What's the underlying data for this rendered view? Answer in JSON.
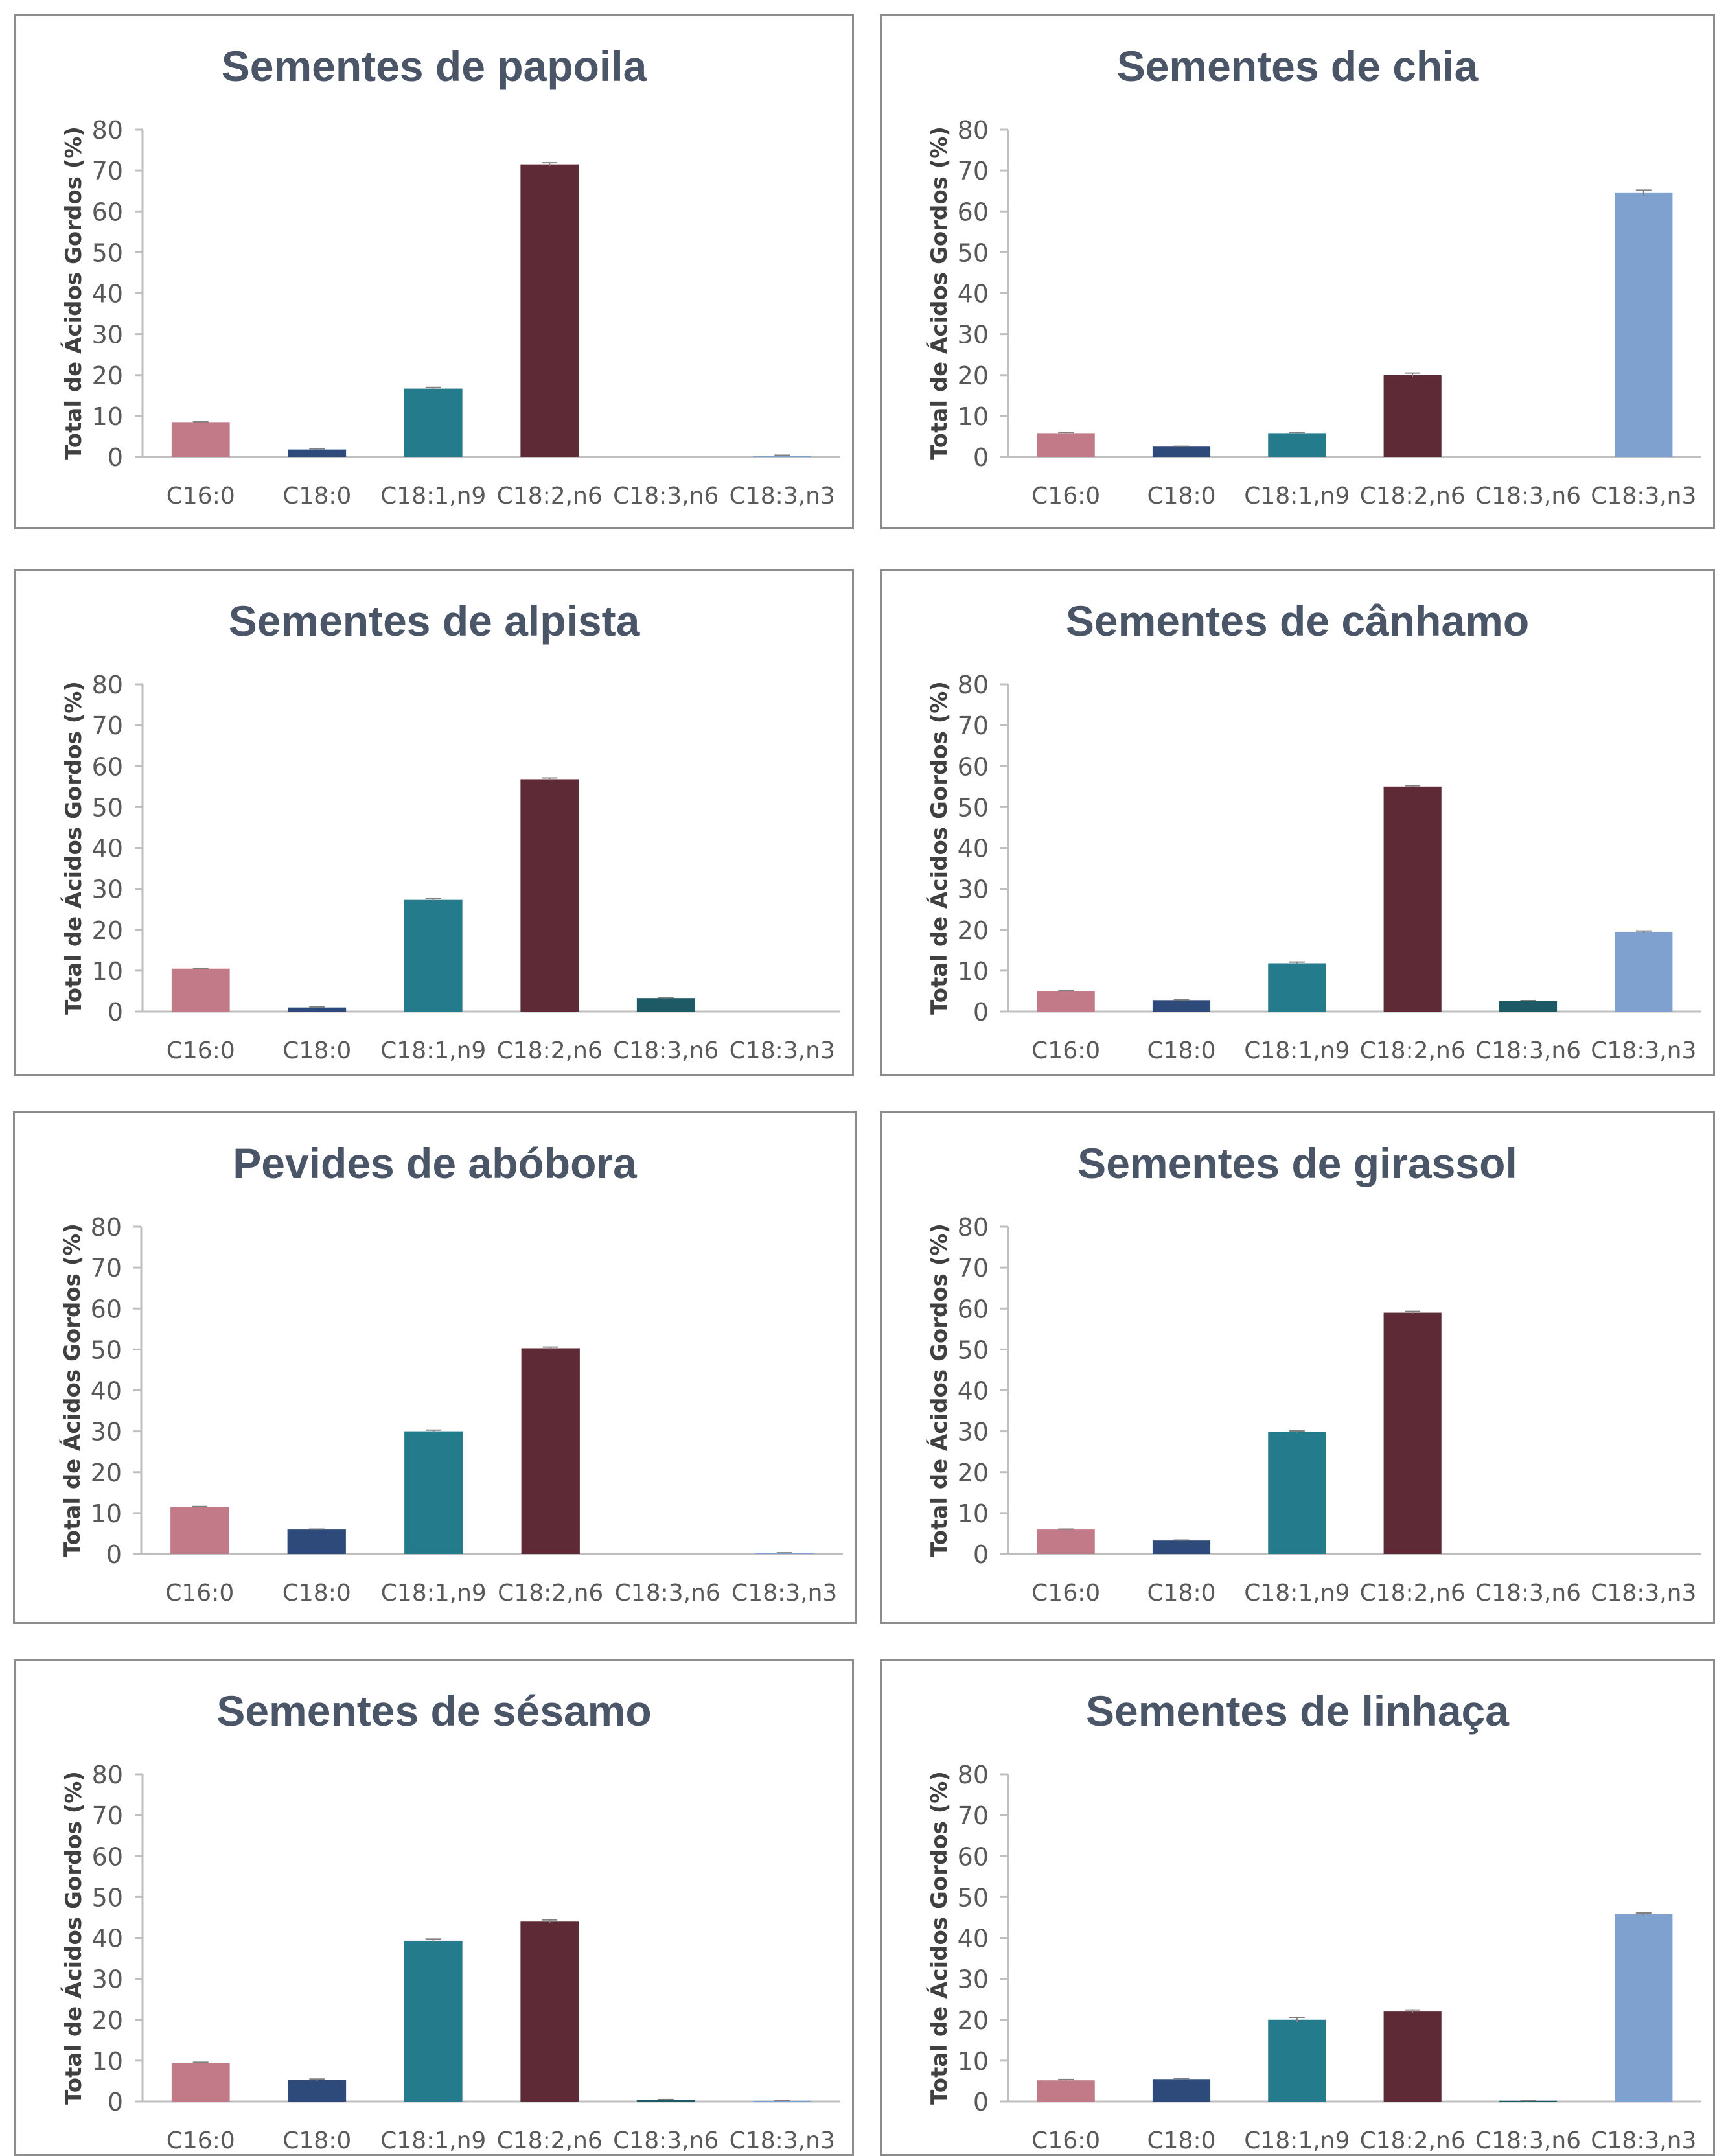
{
  "chart_data": [
    {
      "type": "bar",
      "title": "Sementes de papoila",
      "ylabel": "Total de Ácidos Gordos (%)",
      "xlabel": "",
      "ylim": [
        0,
        80
      ],
      "yticks": [
        0,
        10,
        20,
        30,
        40,
        50,
        60,
        70,
        80
      ],
      "categories": [
        "C16:0",
        "C18:0",
        "C18:1,n9",
        "C18:2,n6",
        "C18:3,n6",
        "C18:3,n3"
      ],
      "values": [
        8.5,
        1.8,
        16.7,
        71.5,
        0,
        0.3
      ],
      "errors": [
        0.1,
        0.2,
        0.3,
        0.4,
        0,
        0.1
      ],
      "grid": false
    },
    {
      "type": "bar",
      "title": "Sementes de chia",
      "ylabel": "Total de Ácidos Gordos (%)",
      "xlabel": "",
      "ylim": [
        0,
        80
      ],
      "yticks": [
        0,
        10,
        20,
        30,
        40,
        50,
        60,
        70,
        80
      ],
      "categories": [
        "C16:0",
        "C18:0",
        "C18:1,n9",
        "C18:2,n6",
        "C18:3,n6",
        "C18:3,n3"
      ],
      "values": [
        5.8,
        2.5,
        5.8,
        20.0,
        0,
        64.5
      ],
      "errors": [
        0.2,
        0.1,
        0.2,
        0.5,
        0,
        0.7
      ],
      "grid": false
    },
    {
      "type": "bar",
      "title": "Sementes de alpista",
      "ylabel": "Total de Ácidos Gordos (%)",
      "xlabel": "",
      "ylim": [
        0,
        80
      ],
      "yticks": [
        0,
        10,
        20,
        30,
        40,
        50,
        60,
        70,
        80
      ],
      "categories": [
        "C16:0",
        "C18:0",
        "C18:1,n9",
        "C18:2,n6",
        "C18:3,n6",
        "C18:3,n3"
      ],
      "values": [
        10.5,
        1.0,
        27.3,
        56.8,
        3.3,
        0
      ],
      "errors": [
        0.1,
        0.1,
        0.3,
        0.3,
        0.1,
        0
      ],
      "grid": false
    },
    {
      "type": "bar",
      "title": "Sementes de cânhamo",
      "ylabel": "Total de Ácidos Gordos (%)",
      "xlabel": "",
      "ylim": [
        0,
        80
      ],
      "yticks": [
        0,
        10,
        20,
        30,
        40,
        50,
        60,
        70,
        80
      ],
      "categories": [
        "C16:0",
        "C18:0",
        "C18:1,n9",
        "C18:2,n6",
        "C18:3,n6",
        "C18:3,n3"
      ],
      "values": [
        5.0,
        2.8,
        11.8,
        55.0,
        2.6,
        19.5
      ],
      "errors": [
        0.1,
        0.1,
        0.3,
        0.2,
        0.1,
        0.2
      ],
      "grid": false
    },
    {
      "type": "bar",
      "title": "Pevides de abóbora",
      "ylabel": "Total de Ácidos Gordos (%)",
      "xlabel": "",
      "ylim": [
        0,
        80
      ],
      "yticks": [
        0,
        10,
        20,
        30,
        40,
        50,
        60,
        70,
        80
      ],
      "categories": [
        "C16:0",
        "C18:0",
        "C18:1,n9",
        "C18:2,n6",
        "C18:3,n6",
        "C18:3,n3"
      ],
      "values": [
        11.5,
        6.0,
        30.0,
        50.3,
        0,
        0.2
      ],
      "errors": [
        0.1,
        0.1,
        0.3,
        0.3,
        0,
        0.1
      ],
      "grid": false
    },
    {
      "type": "bar",
      "title": "Sementes de girassol",
      "ylabel": "Total de Ácidos Gordos (%)",
      "xlabel": "",
      "ylim": [
        0,
        80
      ],
      "yticks": [
        0,
        10,
        20,
        30,
        40,
        50,
        60,
        70,
        80
      ],
      "categories": [
        "C16:0",
        "C18:0",
        "C18:1,n9",
        "C18:2,n6",
        "C18:3,n6",
        "C18:3,n3"
      ],
      "values": [
        6.0,
        3.3,
        29.8,
        59.0,
        0,
        0
      ],
      "errors": [
        0.1,
        0.1,
        0.3,
        0.3,
        0,
        0
      ],
      "grid": false
    },
    {
      "type": "bar",
      "title": "Sementes de sésamo",
      "ylabel": "Total de Ácidos Gordos (%)",
      "xlabel": "",
      "ylim": [
        0,
        80
      ],
      "yticks": [
        0,
        10,
        20,
        30,
        40,
        50,
        60,
        70,
        80
      ],
      "categories": [
        "C16:0",
        "C18:0",
        "C18:1,n9",
        "C18:2,n6",
        "C18:3,n6",
        "C18:3,n3"
      ],
      "values": [
        9.5,
        5.3,
        39.3,
        44.0,
        0.4,
        0.2
      ],
      "errors": [
        0.1,
        0.2,
        0.4,
        0.4,
        0.1,
        0.1
      ],
      "grid": false
    },
    {
      "type": "bar",
      "title": "Sementes de linhaça",
      "ylabel": "Total de Ácidos Gordos (%)",
      "xlabel": "",
      "ylim": [
        0,
        80
      ],
      "yticks": [
        0,
        10,
        20,
        30,
        40,
        50,
        60,
        70,
        80
      ],
      "categories": [
        "C16:0",
        "C18:0",
        "C18:1,n9",
        "C18:2,n6",
        "C18:3,n6",
        "C18:3,n3"
      ],
      "values": [
        5.2,
        5.5,
        20.0,
        22.0,
        0.2,
        45.8
      ],
      "errors": [
        0.2,
        0.2,
        0.6,
        0.4,
        0.1,
        0.3
      ],
      "grid": false
    }
  ],
  "colors": {
    "C16:0": "#c27a89",
    "C18:0": "#2e4a7a",
    "C18:1,n9": "#237b8c",
    "C18:2,n6": "#5e2a35",
    "C18:3,n6": "#1d5a66",
    "C18:3,n3": "#7fa1cf",
    "axis": "#bfbfbf",
    "title": "#4a5568",
    "tick_text": "#595959",
    "error_bar": "#808080"
  }
}
